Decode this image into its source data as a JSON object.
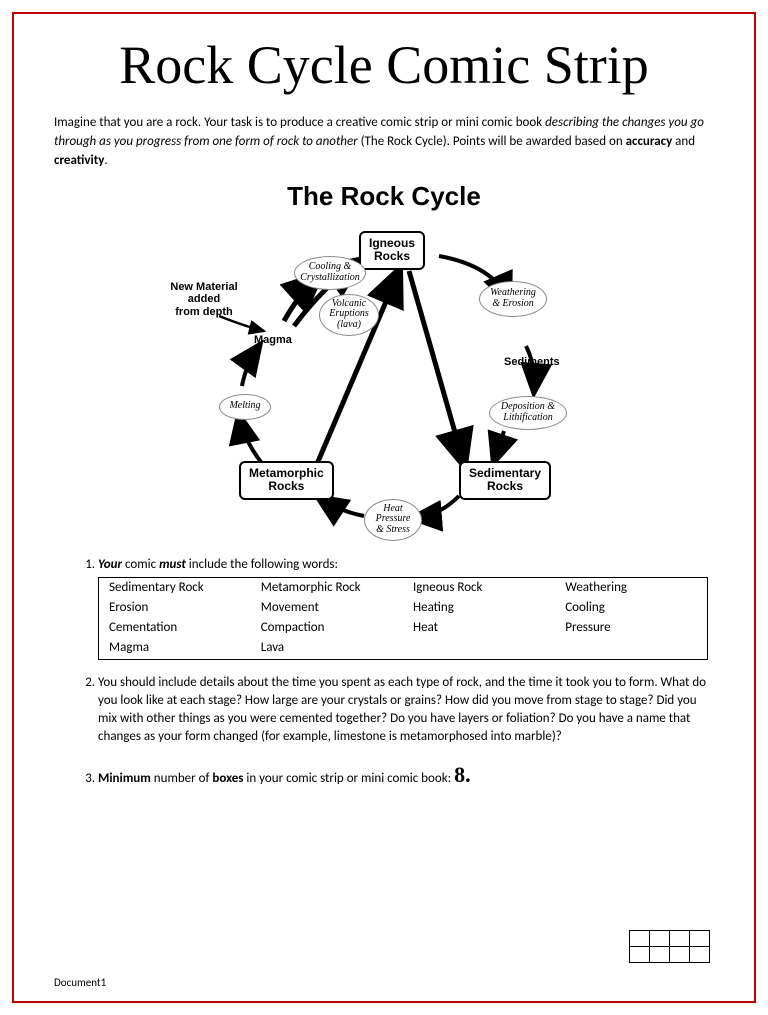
{
  "title": "Rock Cycle Comic Strip",
  "intro": {
    "pre": "Imagine that you are a rock.  Your task is to produce a creative comic strip or mini comic book ",
    "italic": "describing the changes you go through as you progress from one form of rock to another",
    "mid": " (The Rock Cycle).  Points will be awarded based on ",
    "bold1": "accuracy",
    "and": " and ",
    "bold2": "creativity",
    "end": "."
  },
  "diagram": {
    "title": "The Rock Cycle",
    "rects": {
      "igneous": "Igneous\nRocks",
      "sedimentary": "Sedimentary\nRocks",
      "metamorphic": "Metamorphic\nRocks"
    },
    "ovals": {
      "cooling": "Cooling &\nCrystallization",
      "volcanic": "Volcanic\nEruptions\n(lava)",
      "weathering": "Weathering\n& Erosion",
      "deposition": "Deposition &\nLithification",
      "heat": "Heat\nPressure\n& Stress",
      "melting": "Melting"
    },
    "labels": {
      "newmat": "New Material\nadded\nfrom depth",
      "magma": "Magma",
      "sediments": "Sediments"
    }
  },
  "list": {
    "item1_pre": "Your",
    "item1_mid": " comic ",
    "item1_must": "must",
    "item1_post": " include the following words:",
    "words": [
      [
        "Sedimentary Rock",
        "Metamorphic Rock",
        "Igneous Rock",
        "Weathering"
      ],
      [
        "Erosion",
        "Movement",
        "Heating",
        "Cooling"
      ],
      [
        "Cementation",
        "Compaction",
        "Heat",
        "Pressure"
      ],
      [
        "Magma",
        "Lava",
        "",
        ""
      ]
    ],
    "item2": "You should include details about the time you spent as each type of rock, and the time it took you to form.  What do you look like at each stage?  How large are your crystals or grains?  How did you move from stage to stage?  Did you mix with other things as you were cemented together?  Do you have layers or foliation?  Do you have a name that changes as your form changed (for example, limestone is metamorphosed into marble)?",
    "item3_pre": "Minimum",
    "item3_mid": " number of ",
    "item3_boxes": "boxes",
    "item3_post": " in your comic strip or mini comic book: ",
    "item3_num": "8."
  },
  "footer": "Document1",
  "colors": {
    "border": "#c00000",
    "text": "#000000",
    "bg": "#ffffff"
  }
}
